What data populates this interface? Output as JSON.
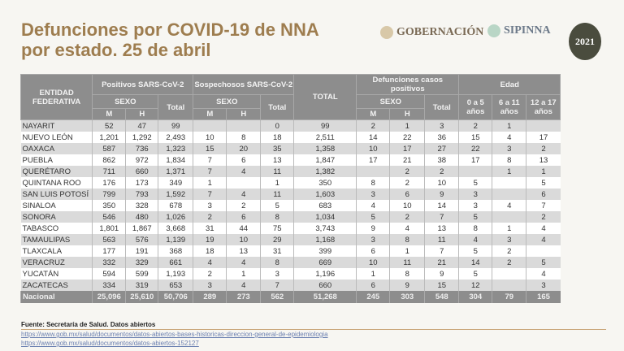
{
  "title_line1": "Defunciones por COVID-19 de NNA",
  "title_line2": "por estado. 25 de abril",
  "logos": {
    "gobernacion": "GOBERNACIÓN",
    "sipinna": "SIPINNA",
    "seal": "2021"
  },
  "headers": {
    "entidad": "ENTIDAD FEDERATIVA",
    "positivos": "Positivos SARS-CoV-2",
    "sospechosos": "Sospechosos SARS-CoV-2",
    "total": "TOTAL",
    "defunciones": "Defunciones casos positivos",
    "edad": "Edad",
    "sexo": "SEXO",
    "m": "M",
    "h": "H",
    "subtotal": "Total",
    "age0": "0 a 5 años",
    "age6": "6 a 11 años",
    "age12": "12 a 17 años"
  },
  "rows": [
    [
      "NAYARIT",
      "52",
      "47",
      "99",
      "",
      "",
      "0",
      "99",
      "2",
      "1",
      "3",
      "2",
      "1",
      ""
    ],
    [
      "NUEVO LEÓN",
      "1,201",
      "1,292",
      "2,493",
      "10",
      "8",
      "18",
      "2,511",
      "14",
      "22",
      "36",
      "15",
      "4",
      "17"
    ],
    [
      "OAXACA",
      "587",
      "736",
      "1,323",
      "15",
      "20",
      "35",
      "1,358",
      "10",
      "17",
      "27",
      "22",
      "3",
      "2"
    ],
    [
      "PUEBLA",
      "862",
      "972",
      "1,834",
      "7",
      "6",
      "13",
      "1,847",
      "17",
      "21",
      "38",
      "17",
      "8",
      "13"
    ],
    [
      "QUERÉTARO",
      "711",
      "660",
      "1,371",
      "7",
      "4",
      "11",
      "1,382",
      "",
      "2",
      "2",
      "",
      "1",
      "1"
    ],
    [
      "QUINTANA ROO",
      "176",
      "173",
      "349",
      "1",
      "",
      "1",
      "350",
      "8",
      "2",
      "10",
      "5",
      "",
      "5"
    ],
    [
      "SAN LUIS POTOSÍ",
      "799",
      "793",
      "1,592",
      "7",
      "4",
      "11",
      "1,603",
      "3",
      "6",
      "9",
      "3",
      "",
      "6"
    ],
    [
      "SINALOA",
      "350",
      "328",
      "678",
      "3",
      "2",
      "5",
      "683",
      "4",
      "10",
      "14",
      "3",
      "4",
      "7"
    ],
    [
      "SONORA",
      "546",
      "480",
      "1,026",
      "2",
      "6",
      "8",
      "1,034",
      "5",
      "2",
      "7",
      "5",
      "",
      "2"
    ],
    [
      "TABASCO",
      "1,801",
      "1,867",
      "3,668",
      "31",
      "44",
      "75",
      "3,743",
      "9",
      "4",
      "13",
      "8",
      "1",
      "4"
    ],
    [
      "TAMAULIPAS",
      "563",
      "576",
      "1,139",
      "19",
      "10",
      "29",
      "1,168",
      "3",
      "8",
      "11",
      "4",
      "3",
      "4"
    ],
    [
      "TLAXCALA",
      "177",
      "191",
      "368",
      "18",
      "13",
      "31",
      "399",
      "6",
      "1",
      "7",
      "5",
      "2",
      ""
    ],
    [
      "VERACRUZ",
      "332",
      "329",
      "661",
      "4",
      "4",
      "8",
      "669",
      "10",
      "11",
      "21",
      "14",
      "2",
      "5"
    ],
    [
      "YUCATÁN",
      "594",
      "599",
      "1,193",
      "2",
      "1",
      "3",
      "1,196",
      "1",
      "8",
      "9",
      "5",
      "",
      "4"
    ],
    [
      "ZACATECAS",
      "334",
      "319",
      "653",
      "3",
      "4",
      "7",
      "660",
      "6",
      "9",
      "15",
      "12",
      "",
      "3"
    ]
  ],
  "nacional": [
    "Nacional",
    "25,096",
    "25,610",
    "50,706",
    "289",
    "273",
    "562",
    "51,268",
    "245",
    "303",
    "548",
    "304",
    "79",
    "165"
  ],
  "source": "Fuente: Secretaría de Salud. Datos abiertos",
  "urls": [
    "https://www.gob.mx/salud/documentos/datos-abiertos-bases-historicas-direccion-general-de-epidemiologia",
    "https://www.gob.mx/salud/documentos/datos-abiertos-152127"
  ]
}
